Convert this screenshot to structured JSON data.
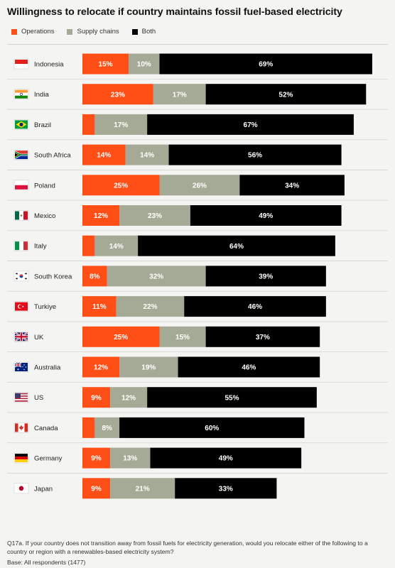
{
  "title": "Willingness to relocate if country maintains fossil fuel-based electricity",
  "legend": [
    {
      "label": "Operations",
      "color": "#ff4f17"
    },
    {
      "label": "Supply chains",
      "color": "#a5aa96"
    },
    {
      "label": "Both",
      "color": "#000000"
    }
  ],
  "chart_data": {
    "type": "bar",
    "orientation": "horizontal",
    "stacked": true,
    "categories": [
      "Indonesia",
      "India",
      "Brazil",
      "South Africa",
      "Poland",
      "Mexico",
      "Italy",
      "South Korea",
      "Turkiye",
      "UK",
      "Australia",
      "US",
      "Canada",
      "Germany",
      "Japan"
    ],
    "series": [
      {
        "name": "Operations",
        "color": "#ff4f17",
        "values": [
          15,
          23,
          4,
          14,
          25,
          12,
          4,
          8,
          11,
          25,
          12,
          9,
          4,
          9,
          9
        ],
        "labels": [
          "15%",
          "23%",
          "",
          "14%",
          "25%",
          "12%",
          "",
          "8%",
          "11%",
          "25%",
          "12%",
          "9%",
          "",
          "9%",
          "9%"
        ]
      },
      {
        "name": "Supply chains",
        "color": "#a5aa96",
        "values": [
          10,
          17,
          17,
          14,
          26,
          23,
          14,
          32,
          22,
          15,
          19,
          12,
          8,
          13,
          21
        ],
        "labels": [
          "10%",
          "17%",
          "17%",
          "14%",
          "26%",
          "23%",
          "14%",
          "32%",
          "22%",
          "15%",
          "19%",
          "12%",
          "8%",
          "13%",
          "21%"
        ]
      },
      {
        "name": "Both",
        "color": "#000000",
        "values": [
          69,
          52,
          67,
          56,
          34,
          49,
          64,
          39,
          46,
          37,
          46,
          55,
          60,
          49,
          33
        ],
        "labels": [
          "69%",
          "52%",
          "67%",
          "56%",
          "34%",
          "49%",
          "64%",
          "39%",
          "46%",
          "37%",
          "46%",
          "55%",
          "60%",
          "49%",
          "33%"
        ]
      }
    ]
  },
  "flags": [
    "indonesia-flag",
    "india-flag",
    "brazil-flag",
    "south-africa-flag",
    "poland-flag",
    "mexico-flag",
    "italy-flag",
    "south-korea-flag",
    "turkiye-flag",
    "uk-flag",
    "australia-flag",
    "us-flag",
    "canada-flag",
    "germany-flag",
    "japan-flag"
  ],
  "footnote": {
    "question": "Q17a. If your country does not transition away from fossil fuels for electricity generation, would you relocate either of the following to a country or region with a renewables-based electricity system?",
    "base": "Base: All respondents (1477)"
  }
}
